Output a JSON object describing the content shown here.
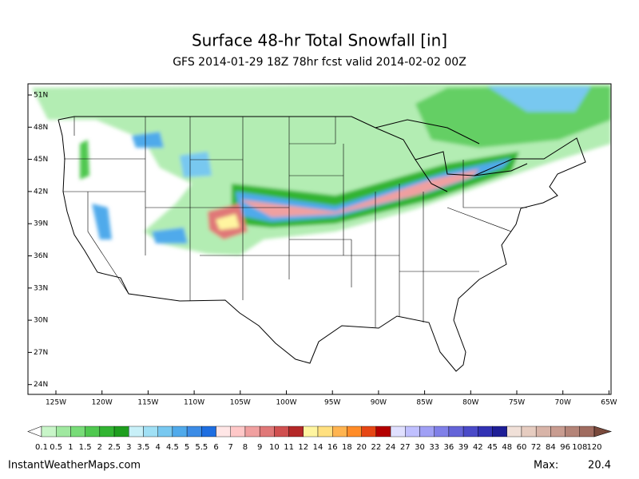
{
  "map": {
    "title": "Surface 48-hr Total Snowfall [in]",
    "subtitle": "GFS 2014-01-29 18Z 78hr fcst valid 2014-02-02 00Z",
    "lat_ticks": [
      {
        "value": 51,
        "label": "51N"
      },
      {
        "value": 48,
        "label": "48N"
      },
      {
        "value": 45,
        "label": "45N"
      },
      {
        "value": 42,
        "label": "42N"
      },
      {
        "value": 39,
        "label": "39N"
      },
      {
        "value": 36,
        "label": "36N"
      },
      {
        "value": 33,
        "label": "33N"
      },
      {
        "value": 30,
        "label": "30N"
      },
      {
        "value": 27,
        "label": "27N"
      },
      {
        "value": 24,
        "label": "24N"
      }
    ],
    "lon_ticks": [
      {
        "value": -125,
        "label": "125W"
      },
      {
        "value": -120,
        "label": "120W"
      },
      {
        "value": -115,
        "label": "115W"
      },
      {
        "value": -110,
        "label": "110W"
      },
      {
        "value": -105,
        "label": "105W"
      },
      {
        "value": -100,
        "label": "100W"
      },
      {
        "value": -95,
        "label": "95W"
      },
      {
        "value": -90,
        "label": "90W"
      },
      {
        "value": -85,
        "label": "85W"
      },
      {
        "value": -80,
        "label": "80W"
      },
      {
        "value": -75,
        "label": "75W"
      },
      {
        "value": -70,
        "label": "70W"
      },
      {
        "value": -65,
        "label": "65W"
      }
    ],
    "colorbar": {
      "levels": [
        0.1,
        0.5,
        1,
        1.5,
        2,
        2.5,
        3,
        3.5,
        4,
        4.5,
        5,
        5.5,
        6,
        7,
        8,
        9,
        10,
        11,
        12,
        14,
        16,
        18,
        20,
        22,
        24,
        27,
        30,
        33,
        36,
        39,
        42,
        45,
        48,
        60,
        72,
        84,
        96,
        108,
        120
      ],
      "below_color": "#ffffff",
      "colors": [
        "#c8f5c8",
        "#a0e8a0",
        "#78dc78",
        "#50c850",
        "#32b432",
        "#1e9e1e",
        "#c8f0f8",
        "#a0e0f5",
        "#78c8f0",
        "#50aaeb",
        "#3c8ce6",
        "#1e6ee1",
        "#ffe6e6",
        "#ffc8c8",
        "#f0a0a0",
        "#e07878",
        "#d05050",
        "#b42828",
        "#fff5a0",
        "#ffe080",
        "#ffb450",
        "#ff8c28",
        "#e64614",
        "#b40000",
        "#e0e0ff",
        "#c0c0ff",
        "#a0a0f5",
        "#8080e8",
        "#6464d8",
        "#4a4ac8",
        "#3232b4",
        "#1e1e96",
        "#f0e0d8",
        "#e6ccc0",
        "#d8b4a8",
        "#c89c90",
        "#b48478",
        "#a06c60"
      ],
      "above_color": "#7a4a3c"
    },
    "source": "InstantWeatherMaps.com",
    "max_label": "Max:",
    "max_value": 20.4
  }
}
